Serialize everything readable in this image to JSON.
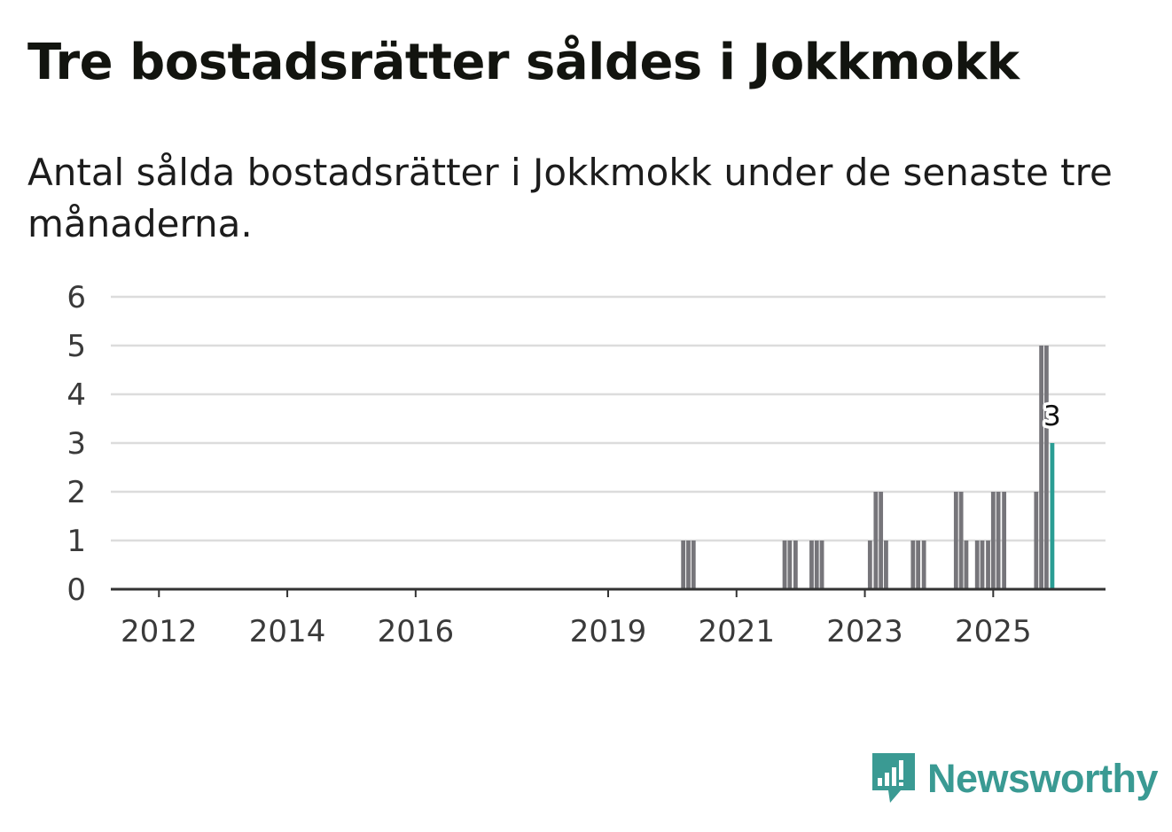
{
  "title": "Tre bostadsrätter såldes i Jokkmokk",
  "subtitle": "Antal sålda bostadsrätter i Jokkmokk under de senaste tre månaderna.",
  "brand": {
    "name": "Newsworthy",
    "color": "#3a9a93"
  },
  "colors": {
    "bar": "#76757a",
    "highlight": "#2a9d94",
    "grid": "#dcdcdc",
    "axis": "#333333"
  },
  "chart_data": {
    "type": "bar",
    "title": "Tre bostadsrätter såldes i Jokkmokk",
    "xlabel": "",
    "ylabel": "",
    "ylim": [
      0,
      6
    ],
    "xlim": [
      2011.25,
      2026.75
    ],
    "yticks": [
      0,
      1,
      2,
      3,
      4,
      5,
      6
    ],
    "xticks": [
      {
        "value": 2012,
        "label": "2012"
      },
      {
        "value": 2014,
        "label": "2014"
      },
      {
        "value": 2016,
        "label": "2016"
      },
      {
        "value": 2019,
        "label": "2019"
      },
      {
        "value": 2021,
        "label": "2021"
      },
      {
        "value": 2023,
        "label": "2023"
      },
      {
        "value": 2025,
        "label": "2025"
      }
    ],
    "series": [
      {
        "name": "Antal sålda bostadsrätter",
        "x": [
          2020.17,
          2020.25,
          2020.33,
          2021.75,
          2021.83,
          2021.92,
          2022.17,
          2022.25,
          2022.33,
          2023.08,
          2023.17,
          2023.25,
          2023.33,
          2023.75,
          2023.83,
          2023.92,
          2024.42,
          2024.5,
          2024.58,
          2024.75,
          2024.83,
          2024.92,
          2025.0,
          2025.08,
          2025.17,
          2025.67,
          2025.75,
          2025.83,
          2025.92
        ],
        "values": [
          1,
          1,
          1,
          1,
          1,
          1,
          1,
          1,
          1,
          1,
          2,
          2,
          1,
          1,
          1,
          1,
          2,
          2,
          1,
          1,
          1,
          1,
          2,
          2,
          2,
          2,
          5,
          5,
          3
        ]
      }
    ],
    "highlight": {
      "x": 2025.92,
      "value": 3,
      "label": "3"
    }
  }
}
